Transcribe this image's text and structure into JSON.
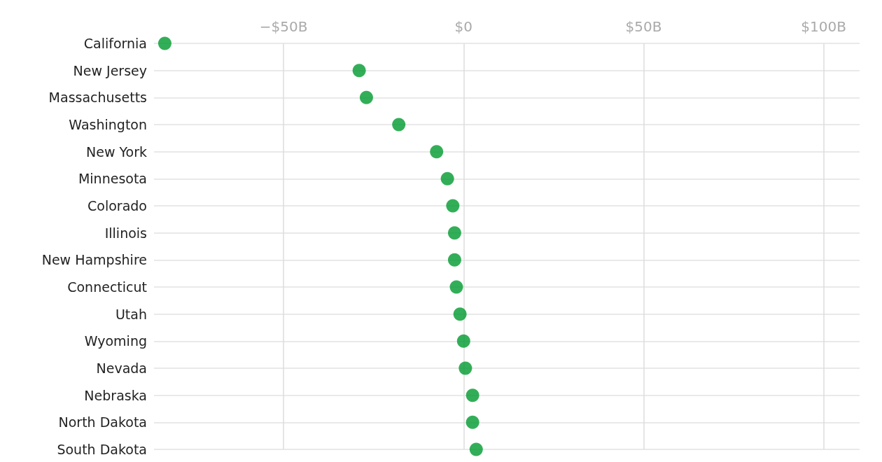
{
  "chart_data": {
    "type": "scatter",
    "categories": [
      "California",
      "New Jersey",
      "Massachusetts",
      "Washington",
      "New York",
      "Minnesota",
      "Colorado",
      "Illinois",
      "New Hampshire",
      "Connecticut",
      "Utah",
      "Wyoming",
      "Nevada",
      "Nebraska",
      "North Dakota",
      "South Dakota"
    ],
    "orientation": "horizontal",
    "values": [
      -83,
      -29,
      -27,
      -18,
      -7.5,
      -4.5,
      -3,
      -2.5,
      -2.5,
      -2,
      -1,
      0,
      0.5,
      2.5,
      2.5,
      3.5
    ],
    "color": "#009a2e",
    "marker": "circle",
    "xlim": [
      -86,
      110
    ],
    "xticks": [
      {
        "value": -50,
        "label": "−$50B"
      },
      {
        "value": 0,
        "label": "$0"
      },
      {
        "value": 50,
        "label": "$50B"
      },
      {
        "value": 100,
        "label": "$100B"
      }
    ],
    "grid": true
  }
}
